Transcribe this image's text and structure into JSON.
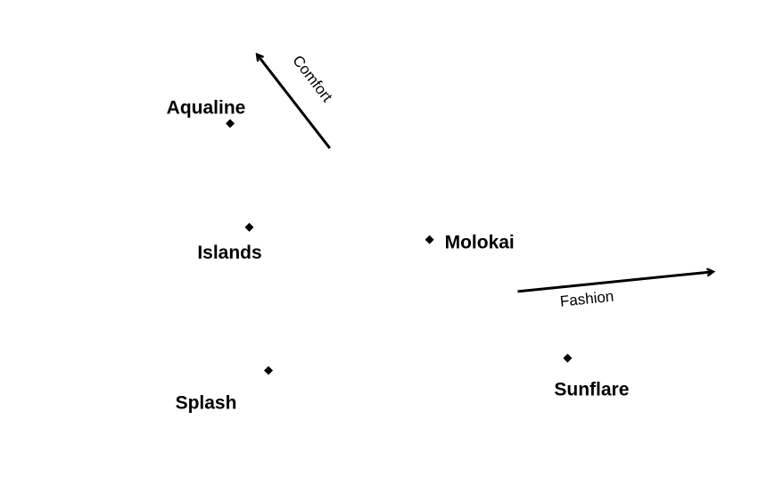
{
  "chart_data": {
    "type": "scatter",
    "title": "",
    "grid": false,
    "legend": "none",
    "marker": "diamond",
    "marker_color": "#000000",
    "arrow_color": "#000000",
    "xlim": [
      0,
      100
    ],
    "ylim": [
      0,
      100
    ],
    "points": [
      {
        "label": "Aqualine",
        "x": 30,
        "y": 75
      },
      {
        "label": "Islands",
        "x": 32.5,
        "y": 54
      },
      {
        "label": "Molokai",
        "x": 56,
        "y": 51.5
      },
      {
        "label": "Splash",
        "x": 35,
        "y": 25
      },
      {
        "label": "Sunflare",
        "x": 74,
        "y": 27.5
      }
    ],
    "vectors": [
      {
        "label": "Comfort",
        "from": [
          43,
          70
        ],
        "to": [
          33.5,
          89
        ]
      },
      {
        "label": "Fashion",
        "from": [
          67.5,
          41
        ],
        "to": [
          93,
          45
        ]
      }
    ]
  }
}
